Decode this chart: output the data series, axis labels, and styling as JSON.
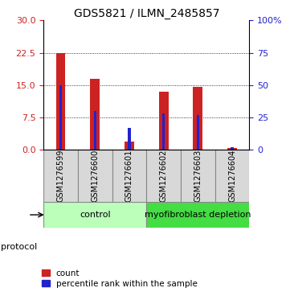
{
  "title": "GDS5821 / ILMN_2485857",
  "samples": [
    "GSM1276599",
    "GSM1276600",
    "GSM1276601",
    "GSM1276602",
    "GSM1276603",
    "GSM1276604"
  ],
  "count_values": [
    22.5,
    16.5,
    2.0,
    13.5,
    14.7,
    0.5
  ],
  "percentile_values": [
    50,
    30,
    17,
    28,
    27,
    2
  ],
  "left_ylim": [
    0,
    30
  ],
  "left_yticks": [
    0,
    7.5,
    15,
    22.5,
    30
  ],
  "right_ylim": [
    0,
    100
  ],
  "right_yticks": [
    0,
    25,
    50,
    75,
    100
  ],
  "right_yticklabels": [
    "0",
    "25",
    "50",
    "75",
    "100%"
  ],
  "red_color": "#cc2222",
  "blue_color": "#2222cc",
  "protocol_groups": [
    {
      "label": "control",
      "indices": [
        0,
        1,
        2
      ],
      "color": "#bbffbb"
    },
    {
      "label": "myofibroblast depletion",
      "indices": [
        3,
        4,
        5
      ],
      "color": "#44dd44"
    }
  ],
  "protocol_label": "protocol",
  "legend_count_label": "count",
  "legend_percentile_label": "percentile rank within the sample",
  "dotted_grid_vals": [
    7.5,
    15,
    22.5
  ],
  "bg_color": "#d8d8d8",
  "title_fontsize": 10,
  "tick_fontsize": 8,
  "sample_fontsize": 7,
  "protocol_fontsize": 8,
  "legend_fontsize": 7.5
}
